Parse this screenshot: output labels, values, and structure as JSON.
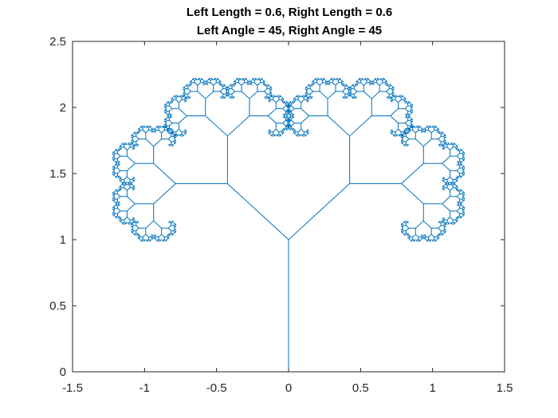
{
  "chart_data": {
    "type": "line",
    "title": [
      "Left Length = 0.6, Right Length = 0.6",
      "Left Angle = 45, Right Angle = 45"
    ],
    "xlabel": "",
    "ylabel": "",
    "xlim": [
      -1.5,
      1.5
    ],
    "ylim": [
      0,
      2.5
    ],
    "xticks": [
      -1.5,
      -1,
      -0.5,
      0,
      0.5,
      1,
      1.5
    ],
    "xtick_labels": [
      "-1.5",
      "-1",
      "-0.5",
      "0",
      "0.5",
      "1",
      "1.5"
    ],
    "yticks": [
      0,
      0.5,
      1,
      1.5,
      2,
      2.5
    ],
    "ytick_labels": [
      "0",
      "0.5",
      "1",
      "1.5",
      "2",
      "2.5"
    ],
    "grid": false,
    "legend": "none",
    "series": [
      {
        "kind": "fractal-tree",
        "color": "#0072BD",
        "trunk": {
          "x": [
            0,
            0
          ],
          "y": [
            0,
            1
          ]
        },
        "left_length_ratio": 0.6,
        "right_length_ratio": 0.6,
        "left_angle_deg": 45,
        "right_angle_deg": 45,
        "depth": 12
      }
    ]
  },
  "colors": {
    "axes": "#262626",
    "series": "#0072BD",
    "background": "#ffffff"
  }
}
